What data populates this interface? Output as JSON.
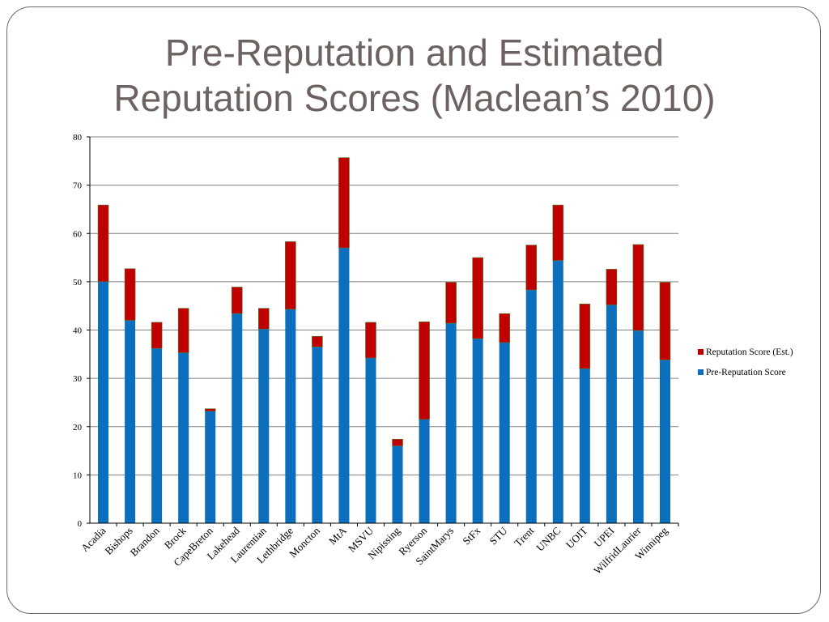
{
  "slide": {
    "title": "Pre-Reputation and Estimated\nReputation Scores (Maclean’s 2010)"
  },
  "colors": {
    "pre_reputation": "#0b6fbd",
    "reputation_est": "#c00000",
    "gridline": "#808080",
    "frame": "#6b6b6b",
    "title": "#6d6262"
  },
  "chart_data": {
    "type": "bar",
    "stacked": true,
    "title": "",
    "xlabel": "",
    "ylabel": "",
    "ylim": [
      0,
      80
    ],
    "yticks": [
      0,
      10,
      20,
      30,
      40,
      50,
      60,
      70,
      80
    ],
    "grid": true,
    "legend_position": "right",
    "categories": [
      "Acadia",
      "Bishops",
      "Brandon",
      "Brock",
      "CapeBreton",
      "Lakehead",
      "Laurentian",
      "Lethbridge",
      "Moncton",
      "MtA",
      "MSVU",
      "Nipissing",
      "Ryerson",
      "SaintMarys",
      "StFx",
      "STU",
      "Trent",
      "UNBC",
      "UOIT",
      "UPEI",
      "WilfridLaurier",
      "Winnipeg"
    ],
    "series": [
      {
        "name": "Pre-Reputation Score",
        "values": [
          50.0,
          42.0,
          36.2,
          35.3,
          23.2,
          43.4,
          40.2,
          44.3,
          36.5,
          57.0,
          34.2,
          16.0,
          21.5,
          41.4,
          38.2,
          37.4,
          48.3,
          54.4,
          32.0,
          45.2,
          39.9,
          33.8
        ]
      },
      {
        "name": "Reputation Score (Est.)",
        "values": [
          15.9,
          10.7,
          5.4,
          9.2,
          0.5,
          5.5,
          4.3,
          14.0,
          2.2,
          18.7,
          7.4,
          1.4,
          20.2,
          8.5,
          16.8,
          6.0,
          9.3,
          11.5,
          13.4,
          7.4,
          17.8,
          16.1
        ]
      }
    ],
    "legend_order": [
      "Reputation Score (Est.)",
      "Pre-Reputation Score"
    ]
  }
}
